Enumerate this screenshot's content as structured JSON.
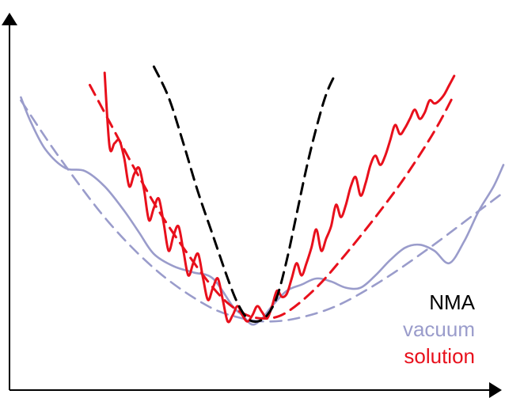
{
  "chart_data": {
    "type": "line",
    "title": "",
    "xlabel": "",
    "ylabel": "",
    "xlim": [
      0,
      100
    ],
    "ylim": [
      0,
      100
    ],
    "grid": false,
    "legend_position": "bottom-right",
    "legend": [
      {
        "label": "NMA",
        "color": "#000000"
      },
      {
        "label": "vacuum",
        "color": "#9a9ccb"
      },
      {
        "label": "solution",
        "color": "#e8101c"
      }
    ],
    "series": [
      {
        "style": "solid",
        "color": "#9a9ccb",
        "x": [
          2,
          4,
          7,
          11,
          15,
          19,
          23,
          26,
          29,
          33,
          37,
          41,
          45,
          47,
          49,
          51,
          53,
          56,
          59,
          62,
          65,
          68,
          71,
          74,
          77,
          80,
          83,
          86,
          89,
          92,
          95,
          98,
          100
        ],
        "y": [
          92,
          84,
          75,
          69,
          68,
          63,
          55,
          48,
          41,
          37,
          35,
          33,
          24,
          21,
          18,
          20,
          24,
          29,
          31,
          33,
          32,
          30,
          30,
          34,
          39,
          43,
          44,
          42,
          38,
          45,
          55,
          63,
          70
        ]
      },
      {
        "style": "dashed",
        "color": "#9a9ccb",
        "x": [
          2,
          10,
          20,
          30,
          40,
          47,
          52,
          58,
          66,
          75,
          85,
          95,
          100
        ],
        "y": [
          91,
          72,
          51,
          35,
          24,
          20,
          19,
          20,
          24,
          32,
          43,
          55,
          61
        ]
      },
      {
        "style": "solid",
        "color": "#e8101c",
        "x": [
          19,
          20,
          21,
          22,
          23,
          24,
          25,
          26,
          27,
          28,
          29,
          30,
          31,
          32,
          33,
          34,
          35,
          36,
          37,
          38,
          39,
          40,
          41,
          42,
          43,
          44,
          45,
          46,
          47,
          48,
          49,
          50,
          51,
          52,
          53,
          54,
          55,
          56,
          57,
          58,
          59,
          60,
          61,
          62,
          63,
          64,
          65,
          66,
          67,
          68,
          69,
          70,
          71,
          72,
          73,
          74,
          75,
          76,
          77,
          78,
          79,
          80,
          81,
          82,
          83,
          84,
          85,
          86,
          87,
          88,
          89,
          90
        ],
        "y": [
          100,
          76,
          77,
          78,
          72,
          63,
          67,
          69,
          62,
          52,
          56,
          59,
          51,
          42,
          47,
          50,
          42,
          34,
          38,
          41,
          33,
          26,
          30,
          33,
          26,
          19,
          21,
          24,
          21,
          19,
          21,
          24,
          22,
          20,
          24,
          29,
          27,
          28,
          33,
          38,
          34,
          38,
          43,
          49,
          42,
          46,
          50,
          57,
          53,
          57,
          63,
          66,
          60,
          64,
          70,
          73,
          70,
          73,
          78,
          83,
          80,
          82,
          85,
          88,
          85,
          87,
          91,
          90,
          91,
          93,
          96,
          99
        ]
      },
      {
        "style": "dashed",
        "color": "#e8101c",
        "x": [
          16,
          20,
          25,
          30,
          35,
          40,
          44,
          48,
          52,
          56,
          62,
          68,
          74,
          80,
          86,
          90
        ],
        "y": [
          96,
          84,
          69,
          55,
          43,
          32,
          25,
          21,
          20,
          22,
          30,
          41,
          53,
          66,
          81,
          93
        ]
      },
      {
        "style": "dashed",
        "color": "#000000",
        "x": [
          29,
          32,
          35,
          38,
          41,
          44,
          46,
          48,
          50,
          52,
          54,
          56,
          58,
          60,
          62,
          64,
          66
        ],
        "y": [
          102,
          92,
          77,
          61,
          47,
          33,
          25,
          20,
          19,
          21,
          27,
          39,
          54,
          69,
          82,
          93,
          100
        ]
      }
    ]
  }
}
